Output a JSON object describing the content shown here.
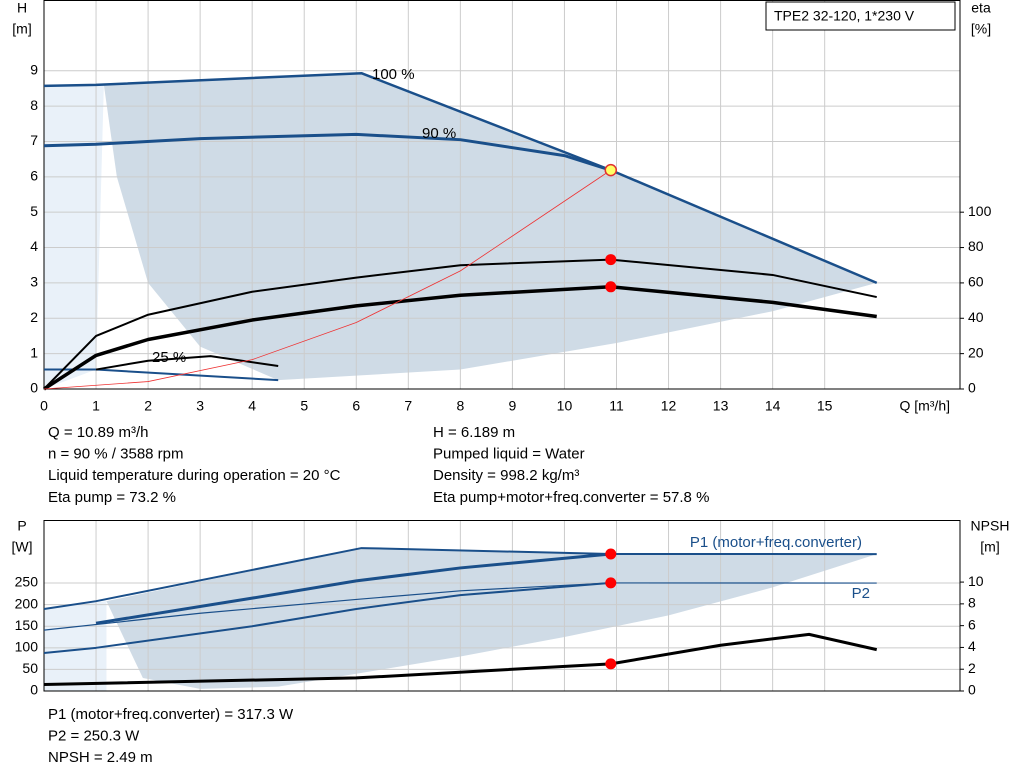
{
  "chart_data": [
    {
      "type": "line",
      "title": "TPE2 32-120, 1*230 V",
      "xlabel": "Q [m³/h]",
      "ylabel": [
        "H",
        "[m]"
      ],
      "y2label": [
        "eta",
        "[%]"
      ],
      "xlim": [
        0,
        17.6
      ],
      "xticks": [
        0,
        1,
        2,
        3,
        4,
        5,
        6,
        7,
        8,
        9,
        10,
        11,
        12,
        13,
        14,
        15
      ],
      "xtick_labels": true,
      "ylim": [
        0,
        11
      ],
      "yticks": [
        0,
        1,
        2,
        3,
        4,
        5,
        6,
        7,
        8,
        9
      ],
      "y2lim": [
        0,
        220
      ],
      "y2ticks": [
        0,
        20,
        40,
        60,
        80,
        100
      ],
      "grid": true,
      "areas": [
        {
          "color": "#e9f1f9",
          "x": [
            0,
            0,
            1,
            1.15,
            1
          ],
          "y": [
            0,
            8.57,
            8.6,
            8.6,
            0.55
          ]
        },
        {
          "color": "#cfdbe6",
          "x": [
            1.15,
            6.1,
            10.89,
            16,
            14,
            11,
            8,
            4.5,
            3,
            2,
            1.4
          ],
          "y": [
            8.6,
            8.93,
            6.189,
            3.0,
            2.2,
            1.3,
            0.55,
            0.25,
            1.2,
            3,
            6
          ]
        }
      ],
      "series": [
        {
          "name": "100 %",
          "color": "#1a4f8a",
          "width": 2.5,
          "x": [
            0,
            1,
            6.1,
            10.89,
            16
          ],
          "values": [
            8.57,
            8.6,
            8.93,
            6.189,
            3.0
          ]
        },
        {
          "name": "90 %",
          "color": "#1a4f8a",
          "width": 3,
          "x": [
            0,
            1,
            3,
            6,
            8,
            10,
            10.89
          ],
          "values": [
            6.88,
            6.92,
            7.08,
            7.2,
            7.05,
            6.6,
            6.189
          ]
        },
        {
          "name": "25 %",
          "color": "#1a4f8a",
          "width": 2,
          "x": [
            0,
            1,
            4.5
          ],
          "values": [
            0.55,
            0.55,
            0.25
          ]
        },
        {
          "color": "#000000",
          "width": 2,
          "axis": "y2",
          "x": [
            0,
            1,
            2,
            4,
            6,
            8,
            10.89,
            14,
            16
          ],
          "values": [
            0,
            30,
            42,
            55,
            63,
            70,
            73.2,
            64.5,
            52
          ]
        },
        {
          "color": "#000000",
          "width": 3.5,
          "axis": "y2",
          "x": [
            0,
            1,
            2,
            4,
            6,
            8,
            10.89,
            14,
            16
          ],
          "values": [
            0,
            19,
            28,
            39,
            47,
            53,
            57.8,
            49,
            41
          ]
        },
        {
          "color": "#000000",
          "width": 2,
          "axis": "y2",
          "x": [
            1,
            2,
            3.2,
            4.5
          ],
          "values": [
            11,
            16,
            18.6,
            13
          ]
        },
        {
          "color": "#ee3333",
          "width": 0.8,
          "x": [
            0,
            2,
            4,
            6,
            8,
            10.89
          ],
          "values": [
            0,
            0.21,
            0.83,
            1.88,
            3.34,
            6.189
          ]
        }
      ],
      "points": [
        {
          "x": 10.89,
          "y": 6.189,
          "color": "#ffff66"
        },
        {
          "x": 10.89,
          "y": 73.2,
          "axis": "y2",
          "color": "#ff0000"
        },
        {
          "x": 10.89,
          "y": 57.8,
          "axis": "y2",
          "color": "#ff0000"
        }
      ],
      "notes": [
        "Q = 10.89 m³/h",
        "n = 90 % / 3588 rpm",
        "Liquid temperature during operation = 20 °C",
        "Eta pump = 73.2 %",
        "H = 6.189 m",
        "Pumped liquid = Water",
        "Density = 998.2 kg/m³",
        "Eta pump+motor+freq.converter = 57.8 %"
      ]
    },
    {
      "type": "line",
      "ylabel": [
        "P",
        "[W]"
      ],
      "y2label": [
        "NPSH",
        "[m]"
      ],
      "xlim": [
        0,
        17.6
      ],
      "xticks": [
        0,
        1,
        2,
        3,
        4,
        5,
        6,
        7,
        8,
        9,
        10,
        11,
        12,
        13,
        14,
        15
      ],
      "xtick_labels": false,
      "ylim": [
        0,
        396
      ],
      "yticks": [
        0,
        50,
        100,
        150,
        200,
        250
      ],
      "y2lim": [
        0,
        15.7
      ],
      "y2ticks": [
        0,
        2,
        4,
        6,
        8,
        10
      ],
      "grid": true,
      "areas": [
        {
          "color": "#e9f1f9",
          "x": [
            0,
            0,
            1.2,
            1.2
          ],
          "y": [
            0,
            190,
            208,
            0
          ]
        },
        {
          "color": "#cfdbe6",
          "x": [
            1.2,
            6.1,
            10.89,
            16,
            14,
            12,
            10,
            8,
            6,
            4.5,
            3,
            1.9
          ],
          "y": [
            208,
            331,
            317.3,
            317,
            240,
            175,
            125,
            80,
            40,
            10,
            5,
            30
          ]
        }
      ],
      "series": [
        {
          "name": "P1 (motor+freq.converter)",
          "color": "#1a4f8a",
          "width": 2,
          "x": [
            0,
            1,
            6.1,
            10.89,
            16
          ],
          "values": [
            190,
            208,
            331,
            317.3,
            317
          ]
        },
        {
          "color": "#1a4f8a",
          "width": 3,
          "x": [
            1,
            4,
            6,
            8,
            10.89
          ],
          "values": [
            157,
            215,
            255,
            285,
            317.3
          ]
        },
        {
          "name": "P2",
          "color": "#1a4f8a",
          "width": 1.2,
          "x": [
            0,
            3,
            6,
            8,
            10.89,
            16
          ],
          "values": [
            141,
            180,
            212,
            232,
            250.3,
            250
          ]
        },
        {
          "color": "#1a4f8a",
          "width": 2,
          "x": [
            0,
            1,
            4,
            6,
            8,
            10.89
          ],
          "values": [
            88,
            100,
            150,
            190,
            222,
            250.3
          ]
        },
        {
          "color": "#000000",
          "width": 3,
          "axis": "y2",
          "x": [
            0,
            6,
            10.89,
            13,
            14.7,
            16
          ],
          "values": [
            0.6,
            1.2,
            2.49,
            4.2,
            5.2,
            3.8
          ]
        }
      ],
      "points": [
        {
          "x": 10.89,
          "y": 317.3,
          "color": "#ff0000"
        },
        {
          "x": 10.89,
          "y": 250.3,
          "color": "#ff0000"
        },
        {
          "x": 10.89,
          "y": 2.49,
          "axis": "y2",
          "color": "#ff0000"
        }
      ],
      "notes": [
        "P1 (motor+freq.converter) = 317.3 W",
        "P2 = 250.3 W",
        "NPSH = 2.49 m"
      ]
    }
  ]
}
